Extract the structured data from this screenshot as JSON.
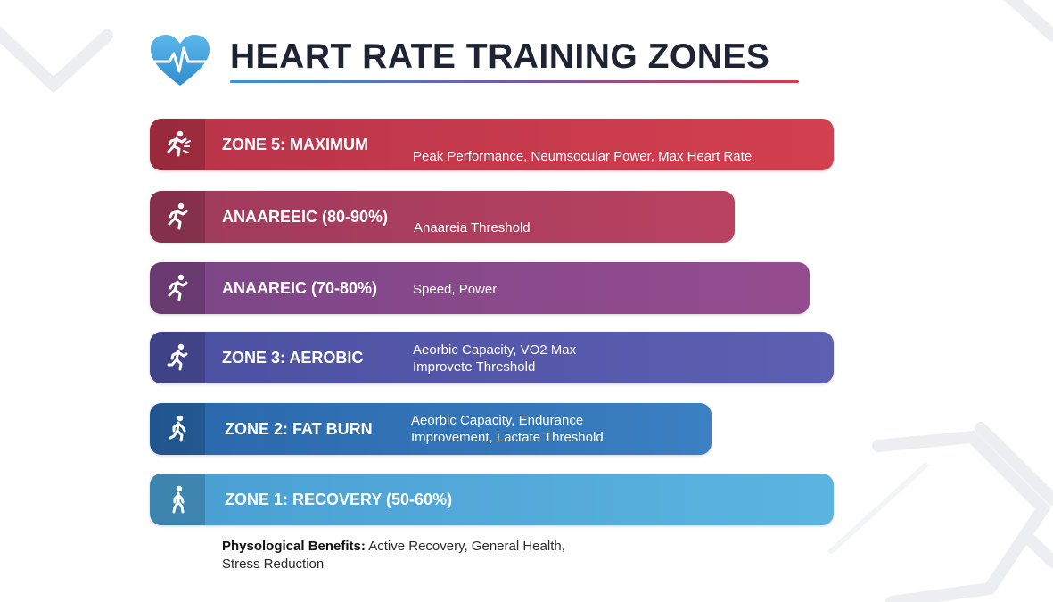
{
  "header": {
    "title": "HEART RATE TRAINING ZONES",
    "logo_icon": "heart-pulse-icon"
  },
  "colors": {
    "title": "#1e2433",
    "zone_5": "#c8384b",
    "zone_4": "#aa3d60",
    "zone_3_upper": "#8d4b8d",
    "zone_3": "#5a58aa",
    "zone_2": "#3273b6",
    "zone_1": "#54abdc"
  },
  "zones": [
    {
      "title": "ZONE 5: MAXIMUM",
      "desc_line1": "Peak Performance, Neumsocular Power, Max Heart Rate",
      "desc_line2": "",
      "icon": "sprinter-icon"
    },
    {
      "title": "ANAAREEIC (80-90%)",
      "desc_line1": "Anaareia Threshold",
      "desc_line2": "",
      "icon": "runner-icon"
    },
    {
      "title": "ANAAREIC (70-80%)",
      "desc_line1": "Speed, Power",
      "desc_line2": "",
      "icon": "runner-icon"
    },
    {
      "title": "ZONE 3: AEROBIC",
      "desc_line1": "Aeorbic Capacity, VO2 Max",
      "desc_line2": "Improvete Threshold",
      "icon": "runner-icon"
    },
    {
      "title": "ZONE 2: FAT BURN",
      "desc_line1": "Aeorbic Capacity, Endurance",
      "desc_line2": "Improvement, Lactate Threshold",
      "icon": "jogger-icon"
    },
    {
      "title": "ZONE 1: RECOVERY (50-60%)",
      "desc_line1": "",
      "desc_line2": "",
      "icon": "walker-icon"
    }
  ],
  "benefits": {
    "label": "Physological Benefits:",
    "text": "Active Recovery, General Health,",
    "text_line2": "Stress Reduction"
  }
}
